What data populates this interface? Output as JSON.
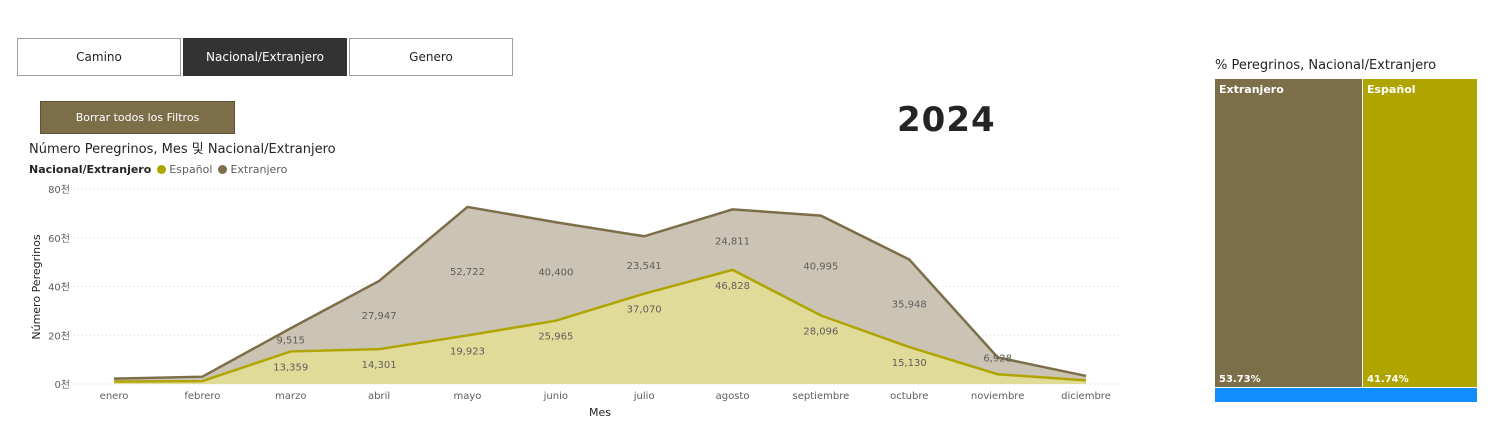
{
  "tabs": [
    {
      "label": "Camino",
      "active": false
    },
    {
      "label": "Nacional/Extranjero",
      "active": true
    },
    {
      "label": "Genero",
      "active": false
    }
  ],
  "clear_filters_label": "Borrar todos los Filtros",
  "year_label": "2024",
  "chart_data": [
    {
      "type": "area",
      "title": "Número Peregrinos, Mes 및 Nacional/Extranjero",
      "legend_title": "Nacional/Extranjero",
      "xlabel": "Mes",
      "ylabel": "Número Peregrinos",
      "ylim": [
        0,
        80000
      ],
      "y_ticks": [
        "0천",
        "20천",
        "40천",
        "60천",
        "80천"
      ],
      "categories": [
        "enero",
        "febrero",
        "marzo",
        "abril",
        "mayo",
        "junio",
        "julio",
        "agosto",
        "septiembre",
        "octubre",
        "noviembre",
        "diciembre"
      ],
      "stacked": true,
      "series": [
        {
          "name": "Español",
          "color": "#b0a500",
          "values": [
            1000,
            1200,
            13359,
            14301,
            19923,
            25965,
            37070,
            46828,
            28096,
            15130,
            4000,
            1500
          ],
          "labels": [
            "",
            "",
            "13,359",
            "14,301",
            "19,923",
            "25,965",
            "37,070",
            "46,828",
            "28,096",
            "15,130",
            "",
            ""
          ]
        },
        {
          "name": "Extranjero",
          "color": "#7d6e4a",
          "values": [
            1200,
            1800,
            9515,
            27947,
            52722,
            40400,
            23541,
            24811,
            40995,
            35948,
            6928,
            1800
          ],
          "labels": [
            "",
            "",
            "9,515",
            "27,947",
            "52,722",
            "40,400",
            "23,541",
            "24,811",
            "40,995",
            "35,948",
            "6,928",
            ""
          ]
        }
      ],
      "grid": true
    },
    {
      "type": "treemap",
      "title": "% Peregrinos, Nacional/Extranjero",
      "items": [
        {
          "name": "Extranjero",
          "value": 53.73,
          "label": "53.73%",
          "color": "#7d6e4a"
        },
        {
          "name": "Español",
          "value": 41.74,
          "label": "41.74%",
          "color": "#b0a500"
        }
      ]
    }
  ]
}
